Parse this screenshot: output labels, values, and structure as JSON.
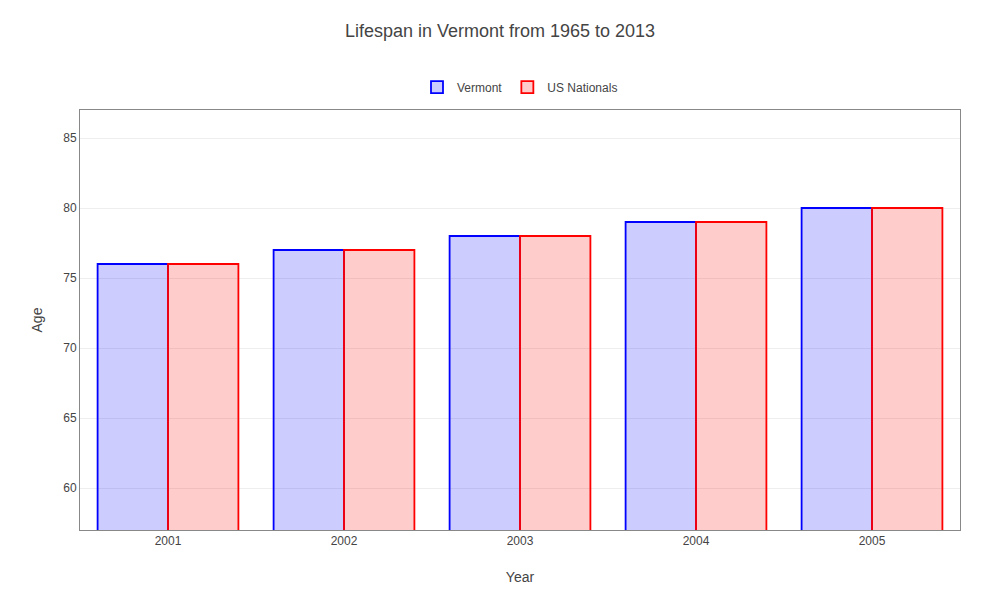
{
  "chart_data": {
    "type": "bar",
    "title": "Lifespan in Vermont from 1965 to 2013",
    "xlabel": "Year",
    "ylabel": "Age",
    "categories": [
      "2001",
      "2002",
      "2003",
      "2004",
      "2005"
    ],
    "series": [
      {
        "name": "Vermont",
        "color": "#0000ff",
        "values": [
          76.0,
          77.0,
          78.0,
          79.0,
          80.0
        ]
      },
      {
        "name": "US Nationals",
        "color": "#ff0000",
        "values": [
          76.0,
          77.0,
          78.0,
          79.0,
          80.0
        ]
      }
    ],
    "ylim": [
      57,
      87
    ],
    "yticks": [
      60,
      65,
      70,
      75,
      80,
      85
    ],
    "grid": true,
    "legend": "top"
  }
}
